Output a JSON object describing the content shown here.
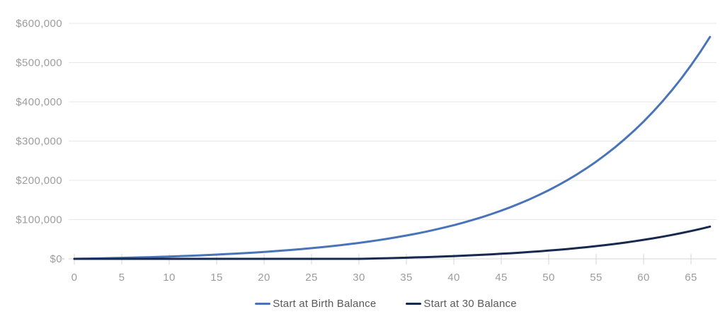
{
  "page": {
    "background": "#ffffff"
  },
  "chart_data": {
    "type": "line",
    "title": "",
    "xlabel": "",
    "ylabel": "",
    "grid": "horizontal",
    "legend_position": "bottom-center",
    "x_axis": {
      "range": [
        0,
        67
      ],
      "ticks": [
        0,
        5,
        10,
        15,
        20,
        25,
        30,
        35,
        40,
        45,
        50,
        55,
        60,
        65
      ]
    },
    "y_axis": {
      "range": [
        0,
        600000
      ],
      "ticks": [
        {
          "value": 600000,
          "label": "$600,000"
        },
        {
          "value": 500000,
          "label": "$500,000"
        },
        {
          "value": 400000,
          "label": "$400,000"
        },
        {
          "value": 300000,
          "label": "$300,000"
        },
        {
          "value": 200000,
          "label": "$200,000"
        },
        {
          "value": 100000,
          "label": "$100,000"
        },
        {
          "value": 0,
          "label": "$0"
        }
      ]
    },
    "x": [
      0,
      1,
      2,
      3,
      4,
      5,
      6,
      7,
      8,
      9,
      10,
      11,
      12,
      13,
      14,
      15,
      16,
      17,
      18,
      19,
      20,
      21,
      22,
      23,
      24,
      25,
      26,
      27,
      28,
      29,
      30,
      31,
      32,
      33,
      34,
      35,
      36,
      37,
      38,
      39,
      40,
      41,
      42,
      43,
      44,
      45,
      46,
      47,
      48,
      49,
      50,
      51,
      52,
      53,
      54,
      55,
      56,
      57,
      58,
      59,
      60,
      61,
      62,
      63,
      64,
      65,
      66,
      67
    ],
    "series": [
      {
        "name": "Start at Birth Balance",
        "color": "#4a74b8",
        "values": [
          0,
          400,
          900,
          1400,
          1900,
          2500,
          3100,
          3700,
          4400,
          5200,
          5900,
          6800,
          7700,
          8700,
          9700,
          10800,
          12000,
          13300,
          14600,
          16100,
          17600,
          19300,
          21100,
          23000,
          25000,
          27200,
          29500,
          32000,
          34700,
          37600,
          40600,
          43900,
          47400,
          51100,
          55200,
          59400,
          64000,
          68900,
          74200,
          79800,
          85800,
          92300,
          99200,
          106500,
          114400,
          122900,
          131900,
          141600,
          151900,
          163000,
          174800,
          187500,
          201000,
          215500,
          231000,
          247600,
          265400,
          284400,
          304800,
          326500,
          349800,
          374700,
          401400,
          429900,
          460400,
          493100,
          528000,
          565400
        ]
      },
      {
        "name": "Start at 30 Balance",
        "color": "#17294e",
        "values": [
          0,
          0,
          0,
          0,
          0,
          0,
          0,
          0,
          0,
          0,
          0,
          0,
          0,
          0,
          0,
          0,
          0,
          0,
          0,
          0,
          0,
          0,
          0,
          0,
          0,
          0,
          0,
          0,
          0,
          0,
          0,
          500,
          1100,
          1600,
          2300,
          2900,
          3700,
          4400,
          5300,
          6100,
          7100,
          8100,
          9200,
          10300,
          11500,
          12900,
          14300,
          15800,
          17400,
          19100,
          21000,
          23000,
          25100,
          27400,
          29800,
          32400,
          35200,
          38100,
          41300,
          44700,
          48400,
          52300,
          56400,
          60900,
          65700,
          70800,
          76200,
          82100
        ]
      }
    ],
    "style": {
      "grid_color": "#e7e7e7",
      "axis_color": "#d4d4d4",
      "tick_label_color": "#9c9c9c",
      "legend_text_color": "#58595b"
    }
  }
}
